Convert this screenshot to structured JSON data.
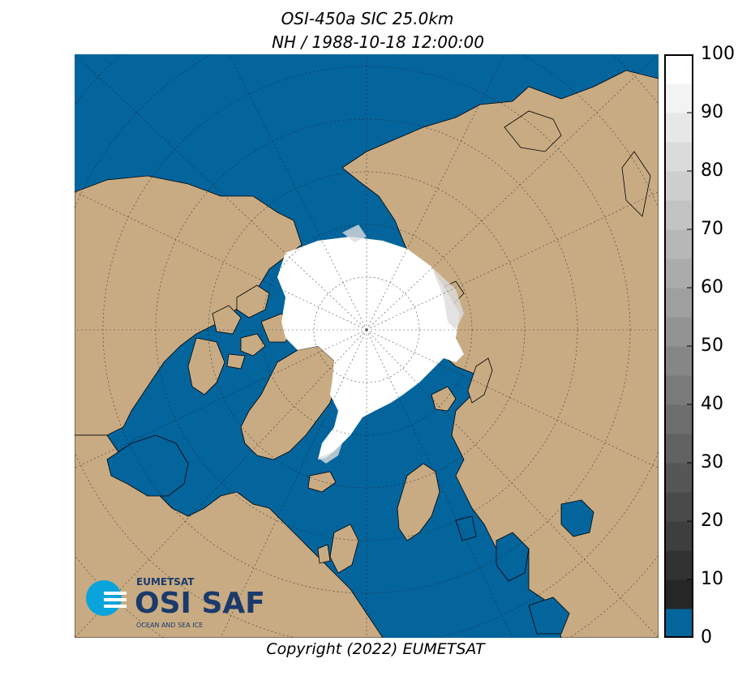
{
  "header": {
    "title_line1": "OSI-450a SIC 25.0km",
    "title_line2": "NH / 1988-10-18 12:00:00"
  },
  "map": {
    "projection": "polar-stereographic-north",
    "colors": {
      "ocean": "#04649c",
      "land": "#c8ab83",
      "ice": "#ffffff",
      "coast": "#000000",
      "graticule": "#222222"
    }
  },
  "colorbar": {
    "label_values": [
      "100",
      "90",
      "80",
      "70",
      "60",
      "50",
      "40",
      "30",
      "20",
      "10",
      "0"
    ],
    "min": 0,
    "max": 100,
    "step": 5,
    "zero_color": "#04649c"
  },
  "logo": {
    "brand": "EUMETSAT",
    "name": "OSI SAF",
    "tagline": "OCEAN AND SEA ICE"
  },
  "footer": {
    "copyright": "Copyright (2022)  EUMETSAT"
  }
}
